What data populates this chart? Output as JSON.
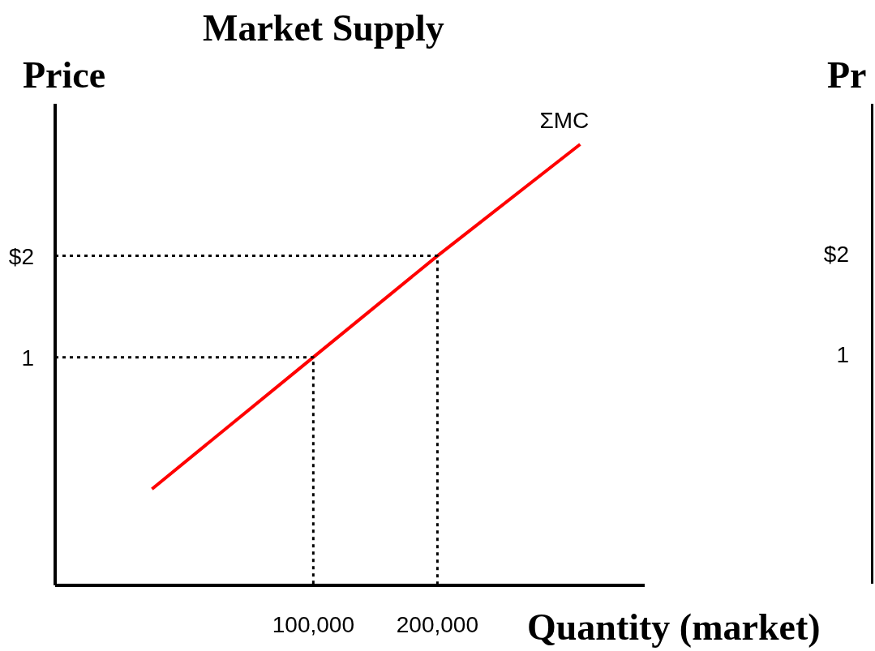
{
  "chart_data": [
    {
      "type": "line",
      "title": "Market Supply",
      "xlabel": "Quantity (market)",
      "ylabel": "Price",
      "xlim": [
        -108000,
        367000
      ],
      "ylim": [
        -1.25,
        3.5
      ],
      "xticks": [
        {
          "value": 100000,
          "label": "100,000"
        },
        {
          "value": 200000,
          "label": "200,000"
        }
      ],
      "yticks": [
        1,
        {
          "value": 2,
          "label": "$2"
        }
      ],
      "series": [
        {
          "name": "ΣMC",
          "color": "#ff0000",
          "x": [
            -30000,
            100000,
            200000,
            315000
          ],
          "values": [
            -0.3,
            1,
            2,
            3.1
          ]
        },
        {
          "color": "#000000",
          "line_style": "dotted",
          "x": [
            -108000,
            100000,
            100000
          ],
          "values": [
            1,
            1,
            -1.25
          ]
        },
        {
          "color": "#000000",
          "line_style": "dotted",
          "x": [
            -108000,
            200000,
            200000
          ],
          "values": [
            2,
            2,
            -1.25
          ]
        }
      ]
    },
    {
      "type": "other",
      "ylabel": "Pr",
      "annotations": [
        "$2",
        "1"
      ]
    }
  ]
}
